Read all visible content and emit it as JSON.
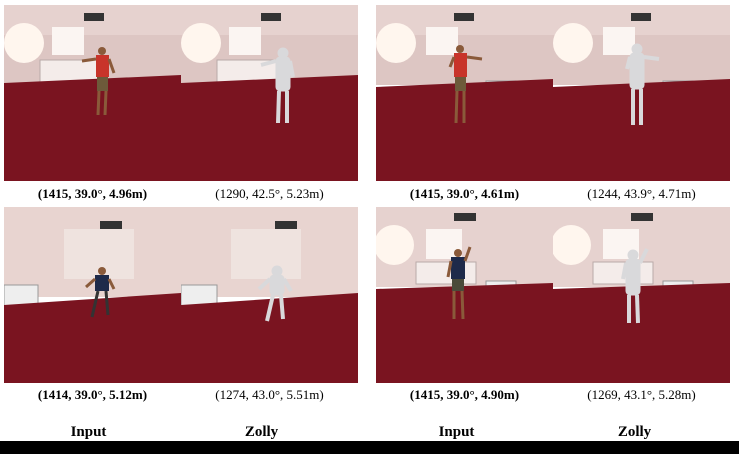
{
  "panels": [
    {
      "id": "tl-input",
      "caption": "(1415, 39.0°, 4.96m)",
      "bold": true
    },
    {
      "id": "tl-zolly",
      "caption": "(1290, 42.5°, 5.23m)",
      "bold": false
    },
    {
      "id": "tr-input",
      "caption": "(1415, 39.0°, 4.61m)",
      "bold": true
    },
    {
      "id": "tr-zolly",
      "caption": "(1244, 43.9°, 4.71m)",
      "bold": false
    },
    {
      "id": "bl-input",
      "caption": "(1414, 39.0°, 5.12m)",
      "bold": true
    },
    {
      "id": "bl-zolly",
      "caption": "(1274, 43.0°, 5.51m)",
      "bold": false
    },
    {
      "id": "br-input",
      "caption": "(1415, 39.0°, 4.90m)",
      "bold": true
    },
    {
      "id": "br-zolly",
      "caption": "(1269, 43.1°, 5.28m)",
      "bold": false
    }
  ],
  "column_labels": [
    "Input",
    "Zolly",
    "Input",
    "Zolly"
  ],
  "colors": {
    "wall": "#e8d6d2",
    "carpet": "#7a1420",
    "mesh": "#d9d9db",
    "shirt_red": "#c8342a",
    "shirt_dark": "#1e2a4a"
  }
}
